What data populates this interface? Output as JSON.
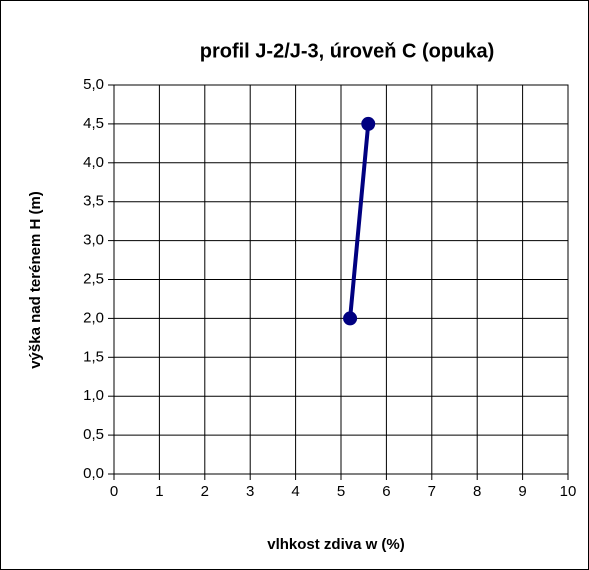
{
  "chart_data": {
    "type": "line",
    "title": "profil J-2/J-3, úroveň C (opuka)",
    "xlabel": "vlhkost zdiva w (%)",
    "ylabel": "výška nad terénem  H (m)",
    "x": [
      5.2,
      5.6
    ],
    "series": [
      {
        "color": "#000080",
        "values": [
          2.0,
          4.5
        ]
      }
    ],
    "xlim": [
      0,
      10
    ],
    "xticks": [
      0,
      1,
      2,
      3,
      4,
      5,
      6,
      7,
      8,
      9,
      10
    ],
    "ylim": [
      0,
      5
    ],
    "yticks": [
      {
        "value": 0,
        "label": "0,0"
      },
      {
        "value": 0.5,
        "label": "0,5"
      },
      {
        "value": 1,
        "label": "1,0"
      },
      {
        "value": 1.5,
        "label": "1,5"
      },
      {
        "value": 2,
        "label": "2,0"
      },
      {
        "value": 2.5,
        "label": "2,5"
      },
      {
        "value": 3,
        "label": "3,0"
      },
      {
        "value": 3.5,
        "label": "3,5"
      },
      {
        "value": 4,
        "label": "4,0"
      },
      {
        "value": 4.5,
        "label": "4,5"
      },
      {
        "value": 5,
        "label": "5,0"
      }
    ],
    "grid": true
  }
}
